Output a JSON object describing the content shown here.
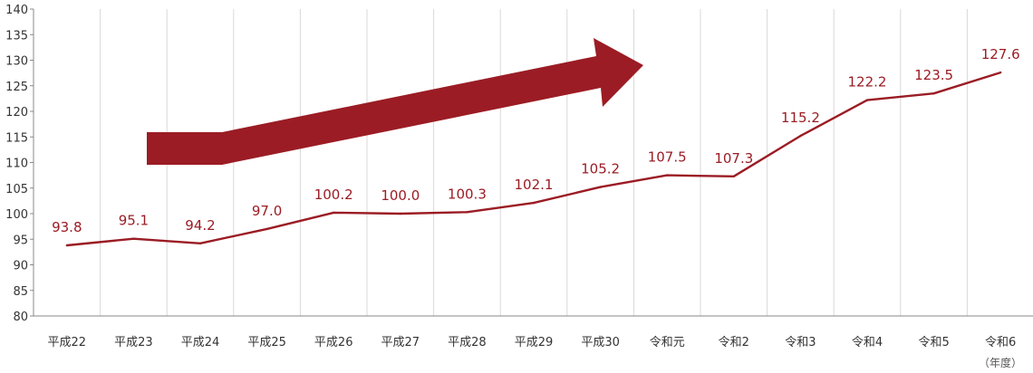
{
  "chart_data": {
    "type": "line",
    "categories": [
      "平成22",
      "平成23",
      "平成24",
      "平成25",
      "平成26",
      "平成27",
      "平成28",
      "平成29",
      "平成30",
      "令和元",
      "令和2",
      "令和3",
      "令和4",
      "令和5",
      "令和6"
    ],
    "series": [
      {
        "values": [
          93.8,
          95.1,
          94.2,
          97.0,
          100.2,
          100.0,
          100.3,
          102.1,
          105.2,
          107.5,
          107.3,
          115.2,
          122.2,
          123.5,
          127.6
        ],
        "labels": [
          "93.8",
          "95.1",
          "94.2",
          "97.0",
          "100.2",
          "100.0",
          "100.3",
          "102.1",
          "105.2",
          "107.5",
          "107.3",
          "115.2",
          "122.2",
          "123.5",
          "127.6"
        ]
      }
    ],
    "ylim": [
      80,
      140
    ],
    "yticks": [
      "80",
      "85",
      "90",
      "95",
      "100",
      "105",
      "110",
      "115",
      "120",
      "125",
      "130",
      "135",
      "140"
    ],
    "x_unit_note": "（年度）",
    "grid": "vertical",
    "annotation": "upward-trend-arrow",
    "colors": {
      "line": "#9b1c24",
      "arrow": "#9b1c24",
      "grid": "#d9d9d9",
      "axis": "#888888"
    }
  }
}
